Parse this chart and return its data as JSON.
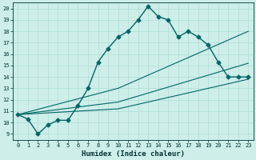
{
  "xlabel": "Humidex (Indice chaleur)",
  "background_color": "#cdeee9",
  "line_color": "#006666",
  "xlim": [
    -0.5,
    23.5
  ],
  "ylim": [
    8.5,
    20.5
  ],
  "xticks": [
    0,
    1,
    2,
    3,
    4,
    5,
    6,
    7,
    8,
    9,
    10,
    11,
    12,
    13,
    14,
    15,
    16,
    17,
    18,
    19,
    20,
    21,
    22,
    23
  ],
  "yticks": [
    9,
    10,
    11,
    12,
    13,
    14,
    15,
    16,
    17,
    18,
    19,
    20
  ],
  "series": [
    {
      "x": [
        0,
        1,
        2,
        3,
        4,
        5,
        6,
        7,
        8,
        9,
        10,
        11,
        12,
        13,
        14,
        15,
        16,
        17,
        18,
        19,
        20,
        21,
        22,
        23
      ],
      "y": [
        10.7,
        10.3,
        9.0,
        9.8,
        10.2,
        10.2,
        11.5,
        13.0,
        15.3,
        16.5,
        17.5,
        18.0,
        19.0,
        20.2,
        19.3,
        19.0,
        17.5,
        18.0,
        17.5,
        16.8,
        15.3,
        14.0,
        14.0,
        14.0
      ],
      "marker": "D",
      "markersize": 2.5,
      "linewidth": 1.0,
      "zorder": 3
    },
    {
      "x": [
        0,
        10,
        23
      ],
      "y": [
        10.7,
        13.0,
        18.0
      ],
      "marker": null,
      "linewidth": 0.8,
      "zorder": 2
    },
    {
      "x": [
        0,
        10,
        23
      ],
      "y": [
        10.7,
        11.8,
        15.2
      ],
      "marker": null,
      "linewidth": 0.8,
      "zorder": 2
    },
    {
      "x": [
        0,
        10,
        23
      ],
      "y": [
        10.7,
        11.2,
        13.8
      ],
      "marker": null,
      "linewidth": 0.8,
      "zorder": 2
    }
  ],
  "grid_color": "#b0ddd5",
  "font_color": "#003333",
  "tick_fontsize": 5.0,
  "label_fontsize": 6.5
}
